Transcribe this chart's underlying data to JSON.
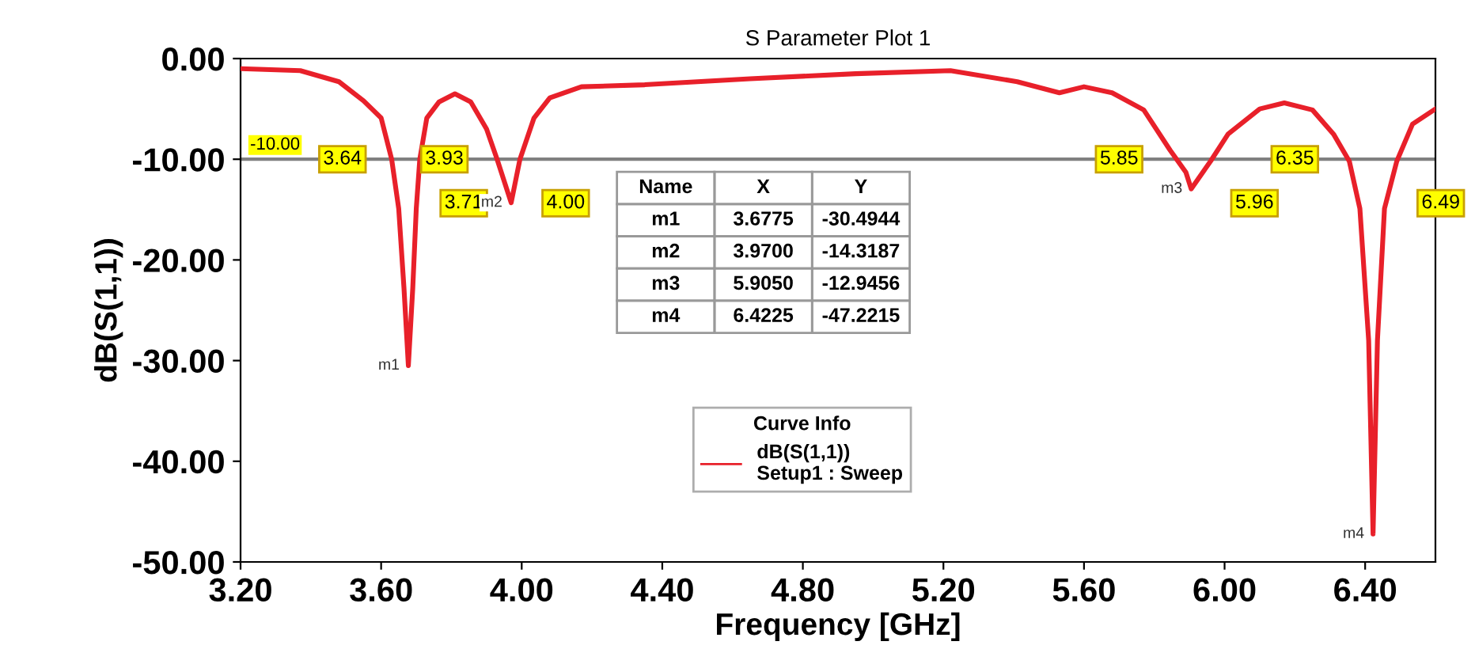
{
  "chart_data": {
    "type": "line",
    "title": "S Parameter Plot 1",
    "xlabel": "Frequency [GHz]",
    "ylabel": "dB(S(1,1))",
    "legend_title": "Curve Info",
    "xlim": [
      3.2,
      6.6
    ],
    "ylim": [
      -50,
      0
    ],
    "xticks": [
      {
        "value": 3.2,
        "label": "3.20"
      },
      {
        "value": 3.6,
        "label": "3.60"
      },
      {
        "value": 4.0,
        "label": "4.00"
      },
      {
        "value": 4.4,
        "label": "4.40"
      },
      {
        "value": 4.8,
        "label": "4.80"
      },
      {
        "value": 5.2,
        "label": "5.20"
      },
      {
        "value": 5.6,
        "label": "5.60"
      },
      {
        "value": 6.0,
        "label": "6.00"
      },
      {
        "value": 6.4,
        "label": "6.40"
      }
    ],
    "yticks": [
      {
        "value": 0,
        "label": "0.00"
      },
      {
        "value": -10,
        "label": "-10.00"
      },
      {
        "value": -20,
        "label": "-20.00"
      },
      {
        "value": -30,
        "label": "-30.00"
      },
      {
        "value": -40,
        "label": "-40.00"
      },
      {
        "value": -50,
        "label": "-50.00"
      }
    ],
    "grid": false,
    "legend": "bottom",
    "marker": "none",
    "line_style": "solid",
    "ref_lines": [
      {
        "axis": "y",
        "value": -10,
        "label": "-10.00",
        "color": "#808080"
      }
    ],
    "series": [
      {
        "name": "dB(S(1,1))\nSetup1 : Sweep",
        "color": "#e8202a",
        "x": [
          3.2,
          3.37,
          3.48,
          3.55,
          3.6,
          3.63,
          3.65,
          3.665,
          3.6775,
          3.69,
          3.7,
          3.71,
          3.73,
          3.765,
          3.81,
          3.855,
          3.9,
          3.93,
          3.97,
          3.995,
          4.035,
          4.08,
          4.17,
          4.35,
          4.65,
          4.95,
          5.22,
          5.41,
          5.53,
          5.6,
          5.68,
          5.77,
          5.845,
          5.89,
          5.905,
          5.96,
          6.01,
          6.1,
          6.17,
          6.25,
          6.31,
          6.355,
          6.385,
          6.41,
          6.4225,
          6.435,
          6.455,
          6.49,
          6.535,
          6.6
        ],
        "values": [
          -1.0,
          -1.2,
          -2.3,
          -4.2,
          -5.9,
          -10,
          -14.9,
          -22.8,
          -30.4944,
          -22.8,
          -14.9,
          -10,
          -5.9,
          -4.3,
          -3.5,
          -4.3,
          -7.0,
          -10,
          -14.3187,
          -10,
          -5.9,
          -3.9,
          -2.8,
          -2.6,
          -2.0,
          -1.5,
          -1.2,
          -2.3,
          -3.4,
          -2.8,
          -3.4,
          -5.1,
          -9.1,
          -11.3,
          -12.9456,
          -10.2,
          -7.5,
          -5.0,
          -4.4,
          -5.1,
          -7.5,
          -10.2,
          -14.9,
          -28,
          -47.2215,
          -28,
          -14.9,
          -10.2,
          -6.5,
          -5.0
        ]
      }
    ],
    "annotations": [
      {
        "text": "3.64",
        "x": 3.64,
        "y": -10
      },
      {
        "text": "3.71",
        "x": 3.71,
        "y": -10
      },
      {
        "text": "3.93",
        "x": 3.93,
        "y": -10
      },
      {
        "text": "4.00",
        "x": 4.0,
        "y": -10
      },
      {
        "text": "5.85",
        "x": 5.85,
        "y": -10
      },
      {
        "text": "5.96",
        "x": 5.96,
        "y": -10
      },
      {
        "text": "6.35",
        "x": 6.35,
        "y": -10
      },
      {
        "text": "6.49",
        "x": 6.49,
        "y": -10
      },
      {
        "text": "m1",
        "x": 3.6775,
        "y": -30.4944
      },
      {
        "text": "m2",
        "x": 3.97,
        "y": -14.3187
      },
      {
        "text": "m3",
        "x": 5.905,
        "y": -12.9456
      },
      {
        "text": "m4",
        "x": 6.4225,
        "y": -47.2215
      },
      "Name",
      "X",
      "Y",
      "m1",
      "3.6775",
      "-30.4944",
      "m2",
      "3.9700",
      "-14.3187",
      "m3",
      "5.9050",
      "-12.9456",
      "m4",
      "6.4225",
      "-47.2215"
    ]
  }
}
